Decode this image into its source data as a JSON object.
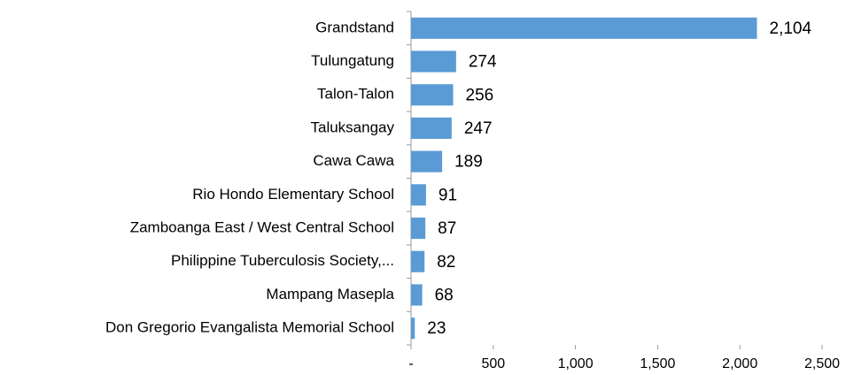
{
  "chart_data": {
    "type": "hbar",
    "categories": [
      "Grandstand",
      "Tulungatung",
      "Talon-Talon",
      "Taluksangay",
      "Cawa Cawa",
      "Rio Hondo Elementary School",
      "Zamboanga East / West Central School",
      "Philippine Tuberculosis Society,...",
      "Mampang Masepla",
      "Don Gregorio Evangalista Memorial School"
    ],
    "values": [
      2104,
      274,
      256,
      247,
      189,
      91,
      87,
      82,
      68,
      23
    ],
    "value_labels": [
      "2,104",
      "274",
      "256",
      "247",
      "189",
      "91",
      "87",
      "82",
      "68",
      "23"
    ],
    "color": "#5b9bd5",
    "xlim": [
      0,
      2500
    ],
    "xticks": [
      {
        "value": 0,
        "label": "-"
      },
      500,
      {
        "value": 1000,
        "label": "1,000"
      },
      {
        "value": 1500,
        "label": "1,500"
      },
      {
        "value": 2000,
        "label": "2,000"
      },
      {
        "value": 2500,
        "label": "2,500"
      }
    ],
    "grid": false
  }
}
